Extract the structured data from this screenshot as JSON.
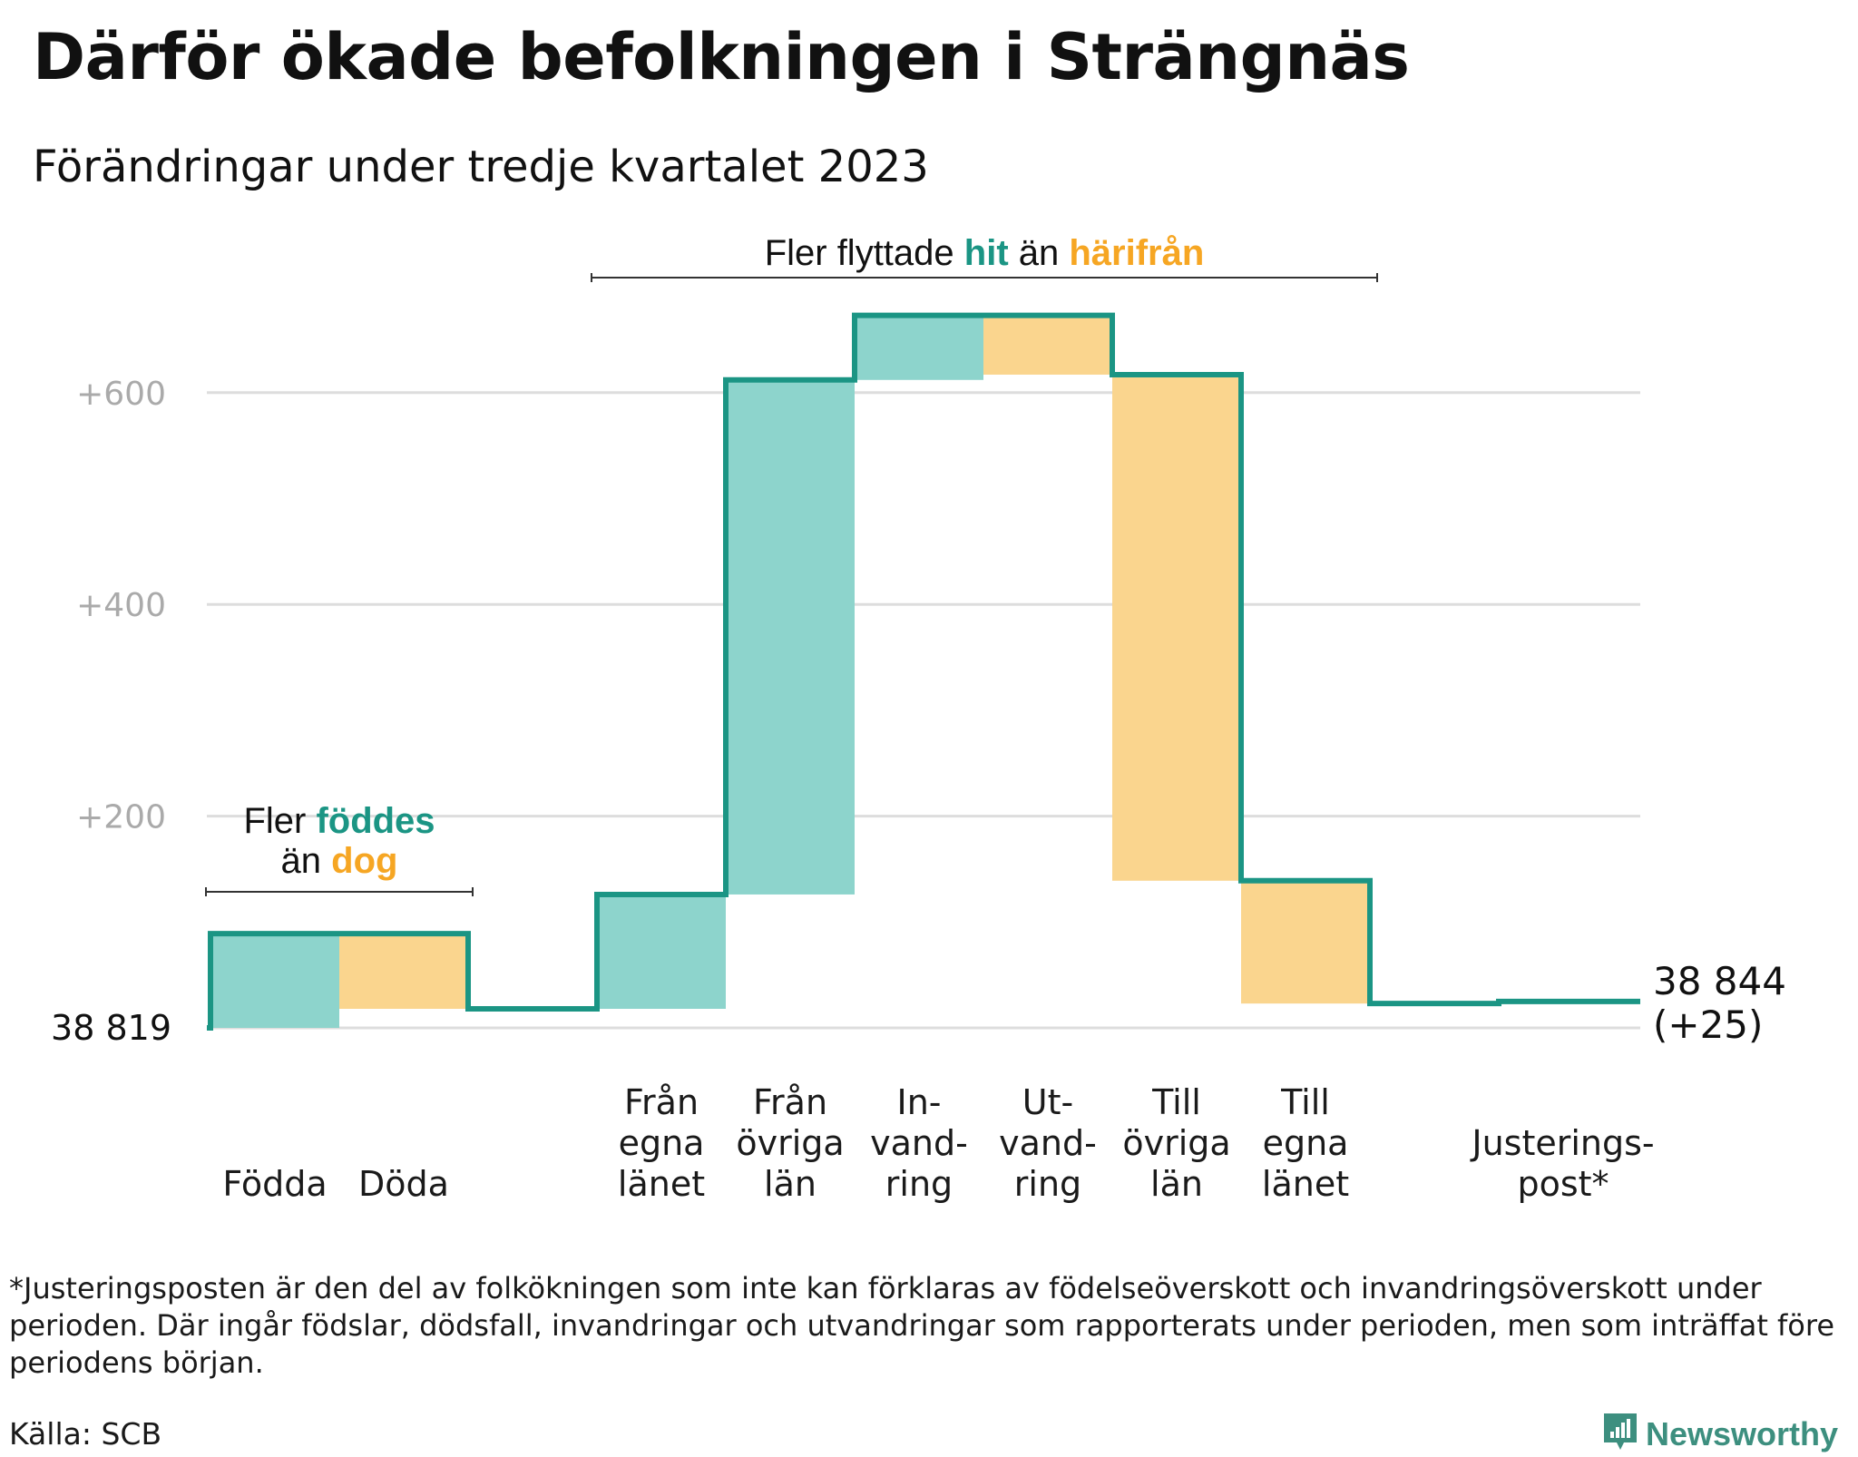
{
  "title": "Därför ökade befolkningen i Strängnäs",
  "subtitle": "Förändringar under tredje kvartalet 2023",
  "footnote": "*Justeringsposten är den del av folkökningen som inte kan förklaras av födelseöverskott och invandringsöverskott under perioden. Där ingår födslar, dödsfall, invandringar och utvandringar som rapporterats under perioden, men som inträffat före periodens början.",
  "source": "Källa: SCB",
  "brand": {
    "name": "Newsworthy",
    "icon": "newsworthy-logo-icon"
  },
  "colors": {
    "increase": "#8dd4cc",
    "decrease": "#fad58e",
    "line": "#1b9584",
    "accent_teal": "#1b9584",
    "accent_orange": "#f6a623",
    "grid": "#dddddd",
    "tick_label": "#aaaaaa"
  },
  "chart_data": {
    "type": "waterfall",
    "title": "Därför ökade befolkningen i Strängnäs",
    "subtitle": "Förändringar under tredje kvartalet 2023",
    "start_value": 38819,
    "start_label": "38 819",
    "end_value": 38844,
    "end_label": "38 844",
    "end_change_label": "(+25)",
    "steps": [
      {
        "category": "Födda",
        "label_lines": [
          "Födda"
        ],
        "value": 89,
        "kind": "increase"
      },
      {
        "category": "Döda",
        "label_lines": [
          "Döda"
        ],
        "value": -71,
        "kind": "decrease"
      },
      {
        "category": "",
        "label_lines": [],
        "value": 0,
        "kind": "gap"
      },
      {
        "category": "Från egna länet",
        "label_lines": [
          "Från",
          "egna",
          "länet"
        ],
        "value": 108,
        "kind": "increase"
      },
      {
        "category": "Från övriga län",
        "label_lines": [
          "Från",
          "övriga",
          "län"
        ],
        "value": 486,
        "kind": "increase"
      },
      {
        "category": "Invandring",
        "label_lines": [
          "In-",
          "vand-",
          "ring"
        ],
        "value": 61,
        "kind": "increase"
      },
      {
        "category": "Utvandring",
        "label_lines": [
          "Ut-",
          "vand-",
          "ring"
        ],
        "value": -56,
        "kind": "decrease"
      },
      {
        "category": "Till övriga län",
        "label_lines": [
          "Till",
          "övriga",
          "län"
        ],
        "value": -478,
        "kind": "decrease"
      },
      {
        "category": "Till egna länet",
        "label_lines": [
          "Till",
          "egna",
          "länet"
        ],
        "value": -116,
        "kind": "decrease"
      },
      {
        "category": "",
        "label_lines": [],
        "value": 0,
        "kind": "gap"
      },
      {
        "category": "Justeringspost*",
        "label_lines": [
          "Justerings-",
          "post*"
        ],
        "value": 2,
        "kind": "adjustment"
      }
    ],
    "y_axis": {
      "ticks": [
        200,
        400,
        600
      ],
      "tick_labels": [
        "+200",
        "+400",
        "+600"
      ],
      "range": [
        0,
        720
      ]
    },
    "grid": true,
    "annotations": [
      {
        "id": "births",
        "line1_prefix": "Fler ",
        "line1_highlight": "föddes",
        "line2_prefix": "än ",
        "line2_highlight": "dog",
        "spans": [
          0,
          1
        ]
      },
      {
        "id": "migration",
        "prefix": "Fler flyttade ",
        "highlight1": "hit",
        "middle": " än ",
        "highlight2": "härifrån",
        "spans": [
          3,
          8
        ]
      }
    ]
  }
}
